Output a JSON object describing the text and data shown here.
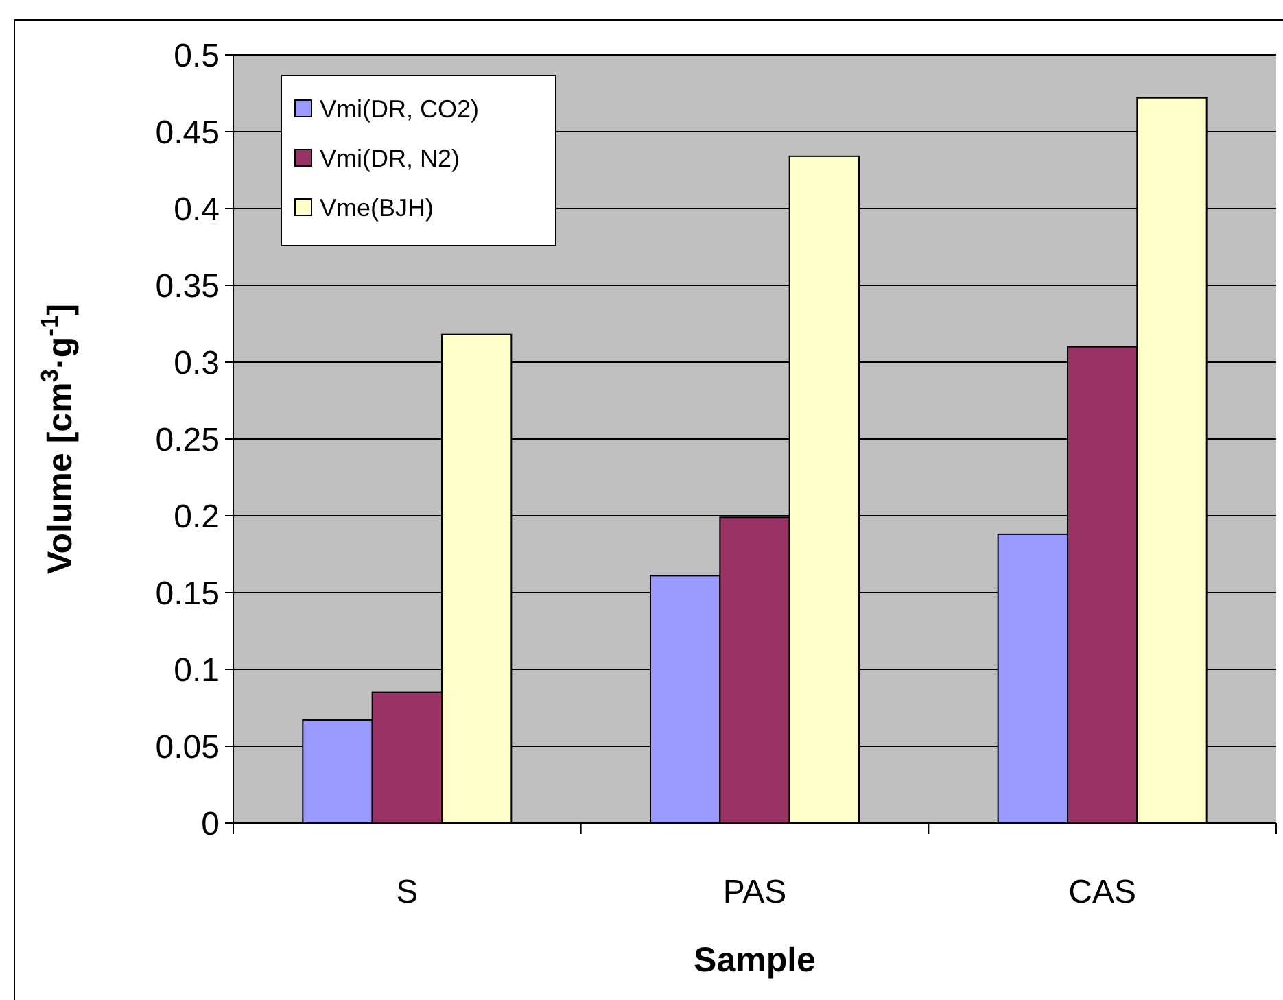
{
  "chart_data": {
    "type": "bar",
    "xlabel": "Sample",
    "ylabel": "Volume [cm$^{3}$·g$^{-1}$]",
    "categories": [
      "S",
      "PAS",
      "CAS"
    ],
    "series": [
      {
        "name": "Vmi(DR, CO2)",
        "color": "#9999ff",
        "values": [
          0.067,
          0.161,
          0.188
        ]
      },
      {
        "name": "Vmi(DR, N2)",
        "color": "#993366",
        "values": [
          0.085,
          0.199,
          0.31
        ]
      },
      {
        "name": "Vme(BJH)",
        "color": "#ffffcc",
        "values": [
          0.318,
          0.434,
          0.472
        ]
      }
    ],
    "ylim": [
      0,
      0.5
    ],
    "yticks": [
      0,
      {
        "value": 0.05,
        "label": "0.05"
      },
      {
        "value": 0.1,
        "label": "0.1"
      },
      {
        "value": 0.15,
        "label": "0.15"
      },
      {
        "value": 0.2,
        "label": "0.2"
      },
      {
        "value": 0.25,
        "label": "0.25"
      },
      {
        "value": 0.3,
        "label": "0.3"
      },
      {
        "value": 0.35,
        "label": "0.35"
      },
      {
        "value": 0.4,
        "label": "0.4"
      },
      {
        "value": 0.45,
        "label": "0.45"
      },
      {
        "value": 0.5,
        "label": "0.5"
      }
    ],
    "grid": "y",
    "legend": "top left"
  }
}
